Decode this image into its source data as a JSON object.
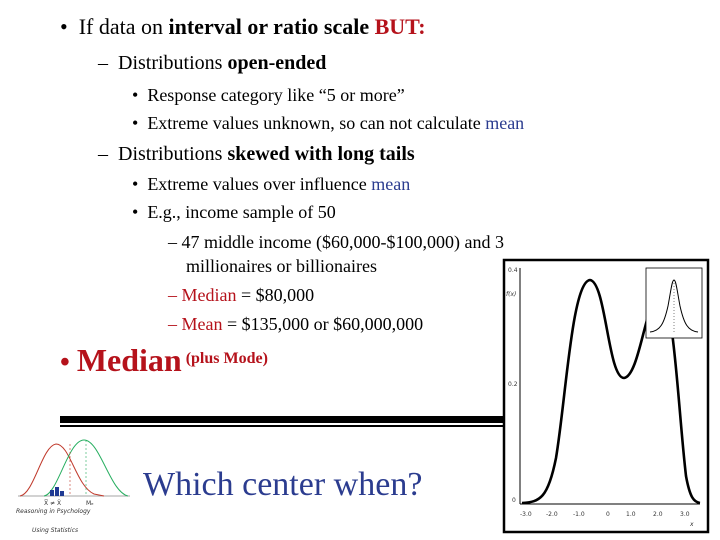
{
  "bullets": {
    "b1": {
      "lead": "If data on ",
      "bold": "interval or ratio scale",
      "red": "BUT:"
    },
    "b1a": {
      "lead": "Distributions ",
      "bold": "open-ended"
    },
    "b1a_i": "Response category like “5 or more”",
    "b1a_ii": {
      "lead": "Extreme values unknown, so can not calculate ",
      "blue": "mean"
    },
    "b1b": {
      "lead": "Distributions ",
      "bold": "skewed with long tails"
    },
    "b1b_i": {
      "lead": "Extreme values over influence ",
      "blue": "mean"
    },
    "b1b_ii": "E.g., income sample of 50",
    "b1b_ii_a1": "– 47 middle income ($60,000-$100,000) and 3",
    "b1b_ii_a2": "millionaires or billionaires",
    "b1b_ii_b": {
      "red": "– Median",
      "rest": " = $80,000"
    },
    "b1b_ii_c": {
      "red": "– Mean",
      "rest": " = $135,000 or $60,000,000"
    },
    "b2": {
      "red": "Median",
      "small": "(plus Mode)"
    }
  },
  "bottom_title": "Which center when?",
  "thumbnail": {
    "caption1": "Reasoning in Psychology",
    "caption2": "Using Statistics",
    "label_a": "X̅ ≠ X̃",
    "label_b": "Mₑ"
  },
  "bimodal_figure": {
    "y_label": "f(x)",
    "x_label": "x",
    "y_ticks": [
      "0.4",
      "0.2",
      "0"
    ],
    "x_ticks": [
      "-3.0",
      "-2.0",
      "-1.0",
      "0",
      "1.0",
      "2.0",
      "3.0"
    ]
  },
  "colors": {
    "blue": "#2b3c8f",
    "red": "#b5121b",
    "thumb_red": "#c0392b",
    "thumb_green": "#27ae60",
    "thumb_blue": "#1f3a93"
  }
}
